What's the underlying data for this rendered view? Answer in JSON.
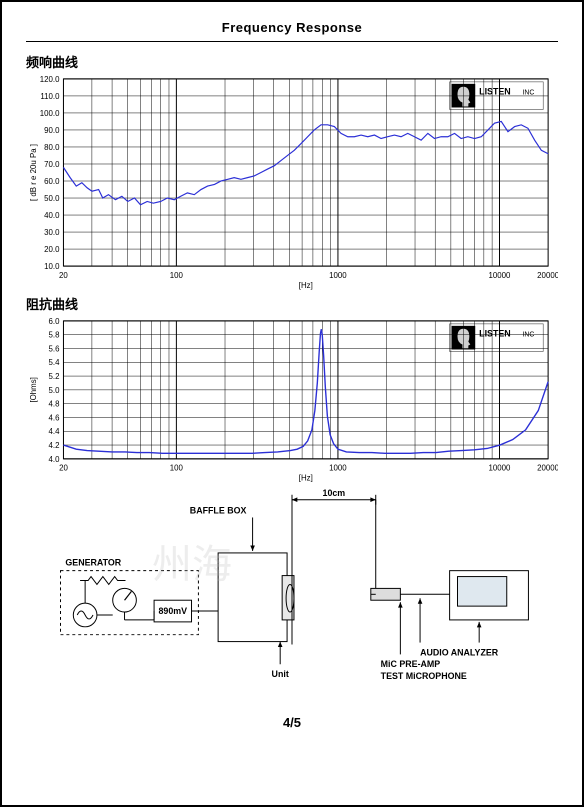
{
  "page": {
    "title": "Frequency    Response",
    "page_number": "4/5",
    "watermark": "州海"
  },
  "chart_freq": {
    "type": "line",
    "section_label": "频响曲线",
    "xlabel": "[Hz]",
    "ylabel": "[ dB  r e  20u  Pa ]",
    "x_scale": "log",
    "xlim": [
      20,
      20000
    ],
    "ylim": [
      10,
      120
    ],
    "ytick_step": 10,
    "yticks": [
      10,
      20,
      30,
      40,
      50,
      60,
      70,
      80,
      90,
      100,
      110,
      120
    ],
    "xticks_major": [
      100,
      1000,
      10000
    ],
    "xtick_labels": [
      "20",
      "100",
      "1000",
      "10000",
      "20000"
    ],
    "line_color": "#2b2fd6",
    "line_width": 1.2,
    "grid_color": "#000000",
    "background_color": "#ffffff",
    "brand_label": "LISTEN INC",
    "label_fontsize": 8,
    "data": [
      [
        20,
        68
      ],
      [
        22,
        62
      ],
      [
        24,
        57
      ],
      [
        26,
        59
      ],
      [
        28,
        56
      ],
      [
        30,
        54
      ],
      [
        33,
        55
      ],
      [
        35,
        50
      ],
      [
        38,
        52
      ],
      [
        42,
        49
      ],
      [
        46,
        51
      ],
      [
        50,
        48
      ],
      [
        55,
        50
      ],
      [
        60,
        46
      ],
      [
        66,
        48
      ],
      [
        72,
        47
      ],
      [
        80,
        48
      ],
      [
        88,
        50
      ],
      [
        97,
        49
      ],
      [
        106,
        51
      ],
      [
        117,
        53
      ],
      [
        129,
        52
      ],
      [
        142,
        55
      ],
      [
        156,
        57
      ],
      [
        172,
        58
      ],
      [
        189,
        60
      ],
      [
        208,
        61
      ],
      [
        228,
        62
      ],
      [
        251,
        61
      ],
      [
        276,
        62
      ],
      [
        303,
        63
      ],
      [
        334,
        65
      ],
      [
        367,
        67
      ],
      [
        404,
        69
      ],
      [
        444,
        72
      ],
      [
        488,
        75
      ],
      [
        537,
        78
      ],
      [
        591,
        82
      ],
      [
        650,
        86
      ],
      [
        714,
        90
      ],
      [
        786,
        93
      ],
      [
        864,
        93
      ],
      [
        950,
        92
      ],
      [
        1045,
        88
      ],
      [
        1150,
        86
      ],
      [
        1264,
        86
      ],
      [
        1390,
        87
      ],
      [
        1530,
        86
      ],
      [
        1682,
        87
      ],
      [
        1850,
        85
      ],
      [
        2034,
        86
      ],
      [
        2237,
        87
      ],
      [
        2460,
        86
      ],
      [
        2706,
        88
      ],
      [
        2976,
        86
      ],
      [
        3273,
        84
      ],
      [
        3600,
        88
      ],
      [
        3959,
        85
      ],
      [
        4354,
        86
      ],
      [
        4789,
        86
      ],
      [
        5267,
        88
      ],
      [
        5793,
        85
      ],
      [
        6371,
        86
      ],
      [
        7008,
        85
      ],
      [
        7707,
        86
      ],
      [
        8477,
        90
      ],
      [
        9323,
        94
      ],
      [
        10254,
        95
      ],
      [
        11277,
        89
      ],
      [
        12402,
        92
      ],
      [
        13640,
        93
      ],
      [
        15001,
        91
      ],
      [
        16500,
        84
      ],
      [
        18148,
        78
      ],
      [
        20000,
        76
      ]
    ]
  },
  "chart_imp": {
    "type": "line",
    "section_label": "阻抗曲线",
    "xlabel": "[Hz]",
    "ylabel": "[Ohms]",
    "x_scale": "log",
    "xlim": [
      20,
      20000
    ],
    "ylim": [
      4.0,
      6.0
    ],
    "ytick_step": 0.2,
    "yticks": [
      4.0,
      4.2,
      4.4,
      4.6,
      4.8,
      5.0,
      5.2,
      5.4,
      5.6,
      5.8,
      6.0
    ],
    "xticks_major": [
      100,
      1000,
      10000
    ],
    "xtick_labels": [
      "20",
      "100",
      "1000",
      "10000",
      "20000"
    ],
    "line_color": "#2b2fd6",
    "line_width": 1.4,
    "grid_color": "#000000",
    "background_color": "#ffffff",
    "brand_label": "LISTEN INC",
    "label_fontsize": 8,
    "data": [
      [
        20,
        4.2
      ],
      [
        24,
        4.14
      ],
      [
        28,
        4.12
      ],
      [
        33,
        4.11
      ],
      [
        40,
        4.1
      ],
      [
        48,
        4.1
      ],
      [
        57,
        4.09
      ],
      [
        68,
        4.09
      ],
      [
        82,
        4.08
      ],
      [
        98,
        4.08
      ],
      [
        118,
        4.08
      ],
      [
        141,
        4.08
      ],
      [
        170,
        4.08
      ],
      [
        204,
        4.08
      ],
      [
        245,
        4.08
      ],
      [
        293,
        4.08
      ],
      [
        352,
        4.09
      ],
      [
        423,
        4.1
      ],
      [
        507,
        4.12
      ],
      [
        560,
        4.14
      ],
      [
        609,
        4.18
      ],
      [
        650,
        4.26
      ],
      [
        690,
        4.42
      ],
      [
        720,
        4.7
      ],
      [
        745,
        5.1
      ],
      [
        765,
        5.55
      ],
      [
        780,
        5.82
      ],
      [
        790,
        5.88
      ],
      [
        800,
        5.8
      ],
      [
        815,
        5.5
      ],
      [
        835,
        5.05
      ],
      [
        860,
        4.62
      ],
      [
        895,
        4.35
      ],
      [
        940,
        4.22
      ],
      [
        1000,
        4.14
      ],
      [
        1128,
        4.1
      ],
      [
        1354,
        4.09
      ],
      [
        1625,
        4.09
      ],
      [
        1950,
        4.08
      ],
      [
        2340,
        4.08
      ],
      [
        2808,
        4.08
      ],
      [
        3370,
        4.09
      ],
      [
        4044,
        4.09
      ],
      [
        4853,
        4.11
      ],
      [
        5824,
        4.12
      ],
      [
        6989,
        4.13
      ],
      [
        8387,
        4.15
      ],
      [
        10064,
        4.2
      ],
      [
        12077,
        4.28
      ],
      [
        14492,
        4.42
      ],
      [
        17390,
        4.7
      ],
      [
        20000,
        5.12
      ]
    ]
  },
  "diagram": {
    "type": "diagram",
    "distance_label": "10cm",
    "baffle_label": "BAFFLE BOX",
    "generator_label": "GENERATOR",
    "voltage_label": "890mV",
    "unit_label": "Unit",
    "analyzer_label": "AUDIO ANALYZER",
    "preamp_label": "MiC PRE-AMP",
    "mic_label": "TEST MiCROPHONE",
    "line_color": "#000000",
    "fill_color": "#f5f5f5",
    "label_fontsize": 8
  }
}
